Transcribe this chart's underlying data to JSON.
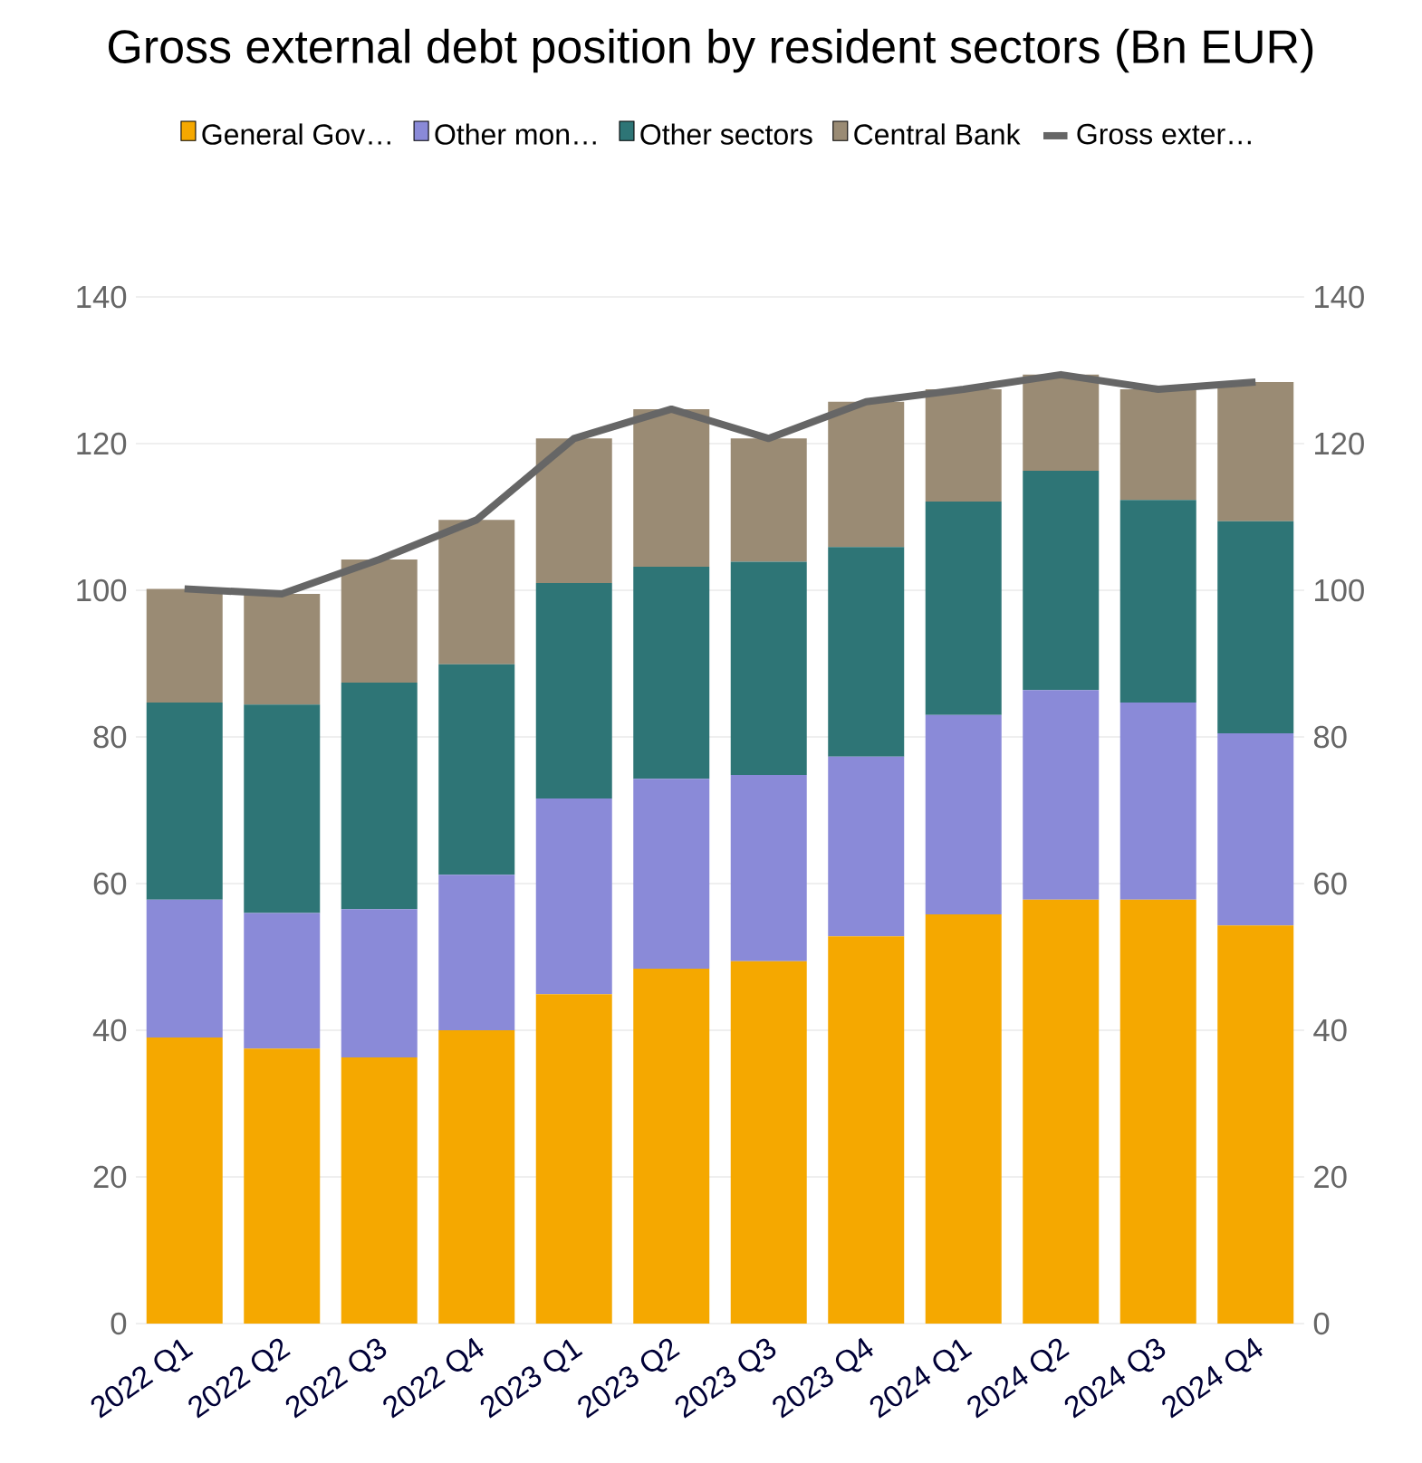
{
  "chart_data": {
    "type": "bar",
    "title": "Gross external debt position by resident sectors (Bn EUR)",
    "categories": [
      "2022 Q1",
      "2022 Q2",
      "2022 Q3",
      "2022 Q4",
      "2023 Q1",
      "2023 Q2",
      "2023 Q3",
      "2023 Q4",
      "2024 Q1",
      "2024 Q2",
      "2024 Q3",
      "2024 Q4"
    ],
    "stacked": true,
    "grid": "y",
    "legend": "top",
    "ylim": [
      0,
      140
    ],
    "yticks": [
      0,
      20,
      40,
      60,
      80,
      100,
      120,
      140
    ],
    "y2lim": [
      0,
      140
    ],
    "y2ticks": [
      0,
      20,
      40,
      60,
      80,
      100,
      120,
      140
    ],
    "series": [
      {
        "name": "General Gov…",
        "color": "#f5a800",
        "values": [
          39.0,
          37.5,
          36.3,
          40.0,
          44.9,
          48.4,
          49.4,
          52.8,
          55.8,
          57.8,
          57.8,
          54.3
        ]
      },
      {
        "name": "Other mon…",
        "color": "#8a8ad8",
        "values": [
          18.8,
          18.5,
          20.2,
          21.2,
          26.7,
          25.9,
          25.4,
          24.5,
          27.2,
          28.6,
          26.9,
          26.2
        ]
      },
      {
        "name": "Other sectors",
        "color": "#2e7576",
        "values": [
          26.9,
          28.4,
          30.9,
          28.7,
          29.4,
          28.9,
          29.1,
          28.6,
          29.1,
          29.9,
          27.6,
          28.9
        ]
      },
      {
        "name": "Central Bank",
        "color": "#9a8b74",
        "values": [
          15.5,
          15.1,
          16.8,
          19.7,
          19.7,
          21.5,
          16.8,
          19.8,
          15.3,
          13.1,
          15.1,
          19.0
        ]
      },
      {
        "name": "Gross exter…",
        "type": "line",
        "axis": "y2",
        "color": "#666666",
        "values": [
          100.2,
          99.5,
          104.2,
          109.6,
          120.7,
          124.7,
          120.7,
          125.7,
          127.4,
          129.4,
          127.4,
          128.4
        ]
      }
    ]
  }
}
